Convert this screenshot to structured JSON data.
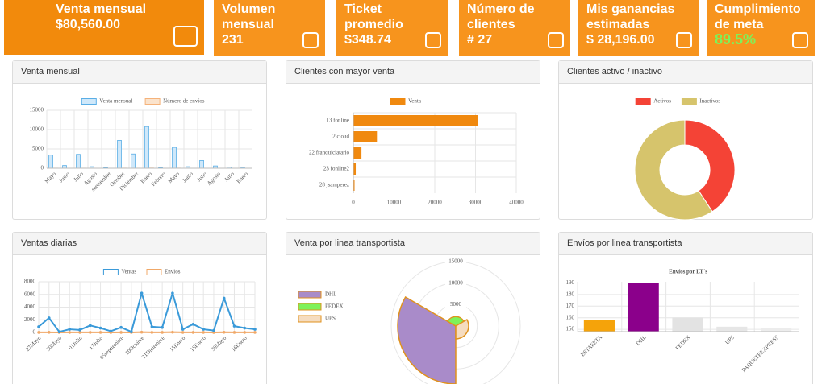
{
  "kpis": [
    {
      "title": "Venta mensual",
      "value": "$80,560.00"
    },
    {
      "title": "Volumen mensual",
      "value": "231"
    },
    {
      "title": "Ticket promedio",
      "value": "$348.74"
    },
    {
      "title": "Número de clientes",
      "value": "# 27"
    },
    {
      "title": "Mis ganancias estimadas",
      "value": "$ 28,196.00"
    },
    {
      "title": "Cumplimiento de meta",
      "value": "89.5%"
    }
  ],
  "chart_data": [
    {
      "type": "bar",
      "title": "Venta mensual",
      "categories": [
        "Mayo",
        "Junio",
        "Julio",
        "Agosto",
        "septiembre",
        "Octubre",
        "Diciembre",
        "Enero",
        "Febrero",
        "Mayo",
        "Junio",
        "Julio",
        "Agosto",
        "Julio",
        "Enero"
      ],
      "series": [
        {
          "name": "Venta mensual",
          "color": "#cfe8fa",
          "border_color": "#5aaee6",
          "values": [
            3400,
            700,
            3600,
            400,
            150,
            7200,
            3700,
            10800,
            150,
            5400,
            400,
            2000,
            600,
            300,
            100
          ]
        },
        {
          "name": "Número de envíos",
          "color": "#fbe3cc",
          "border_color": "#f5b27a",
          "values": [
            30,
            10,
            30,
            10,
            5,
            40,
            30,
            60,
            5,
            40,
            10,
            20,
            10,
            10,
            5
          ]
        }
      ],
      "ylim": [
        0,
        15000
      ],
      "yticks": [
        0,
        5000,
        10000,
        15000
      ],
      "grid": true
    },
    {
      "type": "hbar",
      "title": "Clientes con mayor venta",
      "categories": [
        "13 fonline",
        "2 cloud",
        "22 franquiciatario",
        "23 fonline2",
        "28 jsamperez"
      ],
      "series": [
        {
          "name": "Venta",
          "color": "#f0890f",
          "values": [
            30500,
            5800,
            2000,
            600,
            300
          ]
        }
      ],
      "xlim": [
        0,
        40000
      ],
      "xticks": [
        0,
        10000,
        20000,
        30000,
        40000
      ],
      "grid": true
    },
    {
      "type": "doughnut",
      "title": "Clientes activo / inactivo",
      "categories": [
        "Activos",
        "Inactivos"
      ],
      "values": [
        11,
        16
      ],
      "colors": [
        "#f44336",
        "#d6c46c"
      ]
    },
    {
      "type": "line",
      "title": "Ventas diarias",
      "categories": [
        "27Mayo",
        null,
        "30Mayo",
        null,
        "01Julio",
        null,
        "17Julio",
        null,
        "05septiembre",
        null,
        "10Octubre",
        null,
        "21Diciembre",
        null,
        "15Enero",
        null,
        "18Enero",
        null,
        "30Mayo",
        null,
        "16Enero",
        null
      ],
      "series": [
        {
          "name": "Ventas",
          "color": "#3a9ad9",
          "values": [
            900,
            2300,
            100,
            500,
            400,
            1100,
            700,
            200,
            800,
            100,
            6200,
            900,
            800,
            6200,
            500,
            1300,
            500,
            300,
            5400,
            1000,
            700,
            500
          ]
        },
        {
          "name": "Envios",
          "color": "#f0a868",
          "values": [
            10,
            20,
            5,
            10,
            10,
            10,
            10,
            5,
            10,
            5,
            40,
            10,
            10,
            40,
            10,
            10,
            10,
            5,
            30,
            10,
            10,
            10
          ]
        }
      ],
      "ylim": [
        0,
        8000
      ],
      "yticks": [
        0,
        2000,
        4000,
        6000,
        8000
      ],
      "grid": true
    },
    {
      "type": "polar",
      "title": "Venta por linea transportista",
      "categories": [
        "DHL",
        "FEDEX",
        "UPS"
      ],
      "values": [
        13500,
        2200,
        3000
      ],
      "colors": [
        "#a98bc9",
        "#7ef25a",
        "#f5dcc0"
      ],
      "border_color": "#e0921e",
      "rlim": [
        0,
        15000
      ],
      "rticks": [
        5000,
        10000,
        15000
      ]
    },
    {
      "type": "bar",
      "title": "Envíos por linea transportista",
      "subtitle": "Envíos por LT´s",
      "categories": [
        "ESTAFETA",
        "DHL",
        "FEDEX",
        "UPS",
        "PAQUETEEXPRESS"
      ],
      "values": [
        158,
        190,
        160,
        152,
        151
      ],
      "colors": [
        "#f5a30a",
        "#8b008b",
        "#e3e3e3",
        "#e6e6e6",
        "#ececec"
      ],
      "ylim": [
        148,
        191
      ],
      "yticks": [
        150,
        160,
        170,
        180,
        190
      ],
      "grid": true
    }
  ]
}
